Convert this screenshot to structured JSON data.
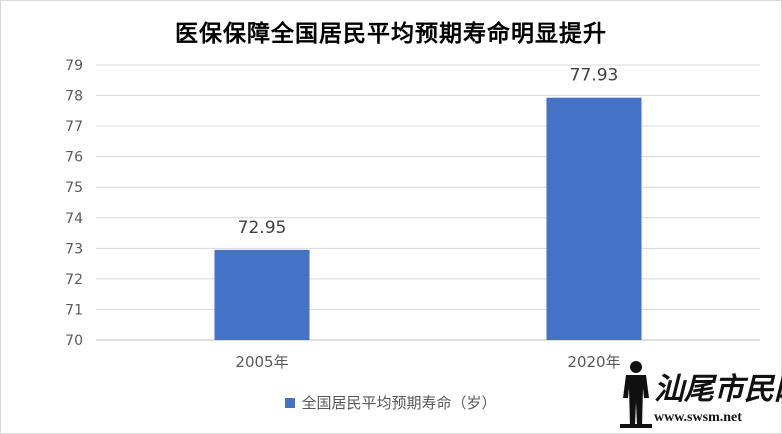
{
  "chart_data": {
    "type": "bar",
    "title": "医保保障全国居民平均预期寿命明显提升",
    "categories": [
      "2005年",
      "2020年"
    ],
    "series": [
      {
        "name": "全国居民平均预期寿命（岁）",
        "values": [
          72.95,
          77.93
        ],
        "color": "#4472c4"
      }
    ],
    "data_labels": [
      "72.95",
      "77.93"
    ],
    "ylim": [
      70,
      79
    ],
    "yticks": [
      70,
      71,
      72,
      73,
      74,
      75,
      76,
      77,
      78,
      79
    ],
    "grid": true,
    "legend_position": "bottom"
  },
  "watermark": {
    "text": "汕尾市民网",
    "url": "www.swsm.net"
  }
}
